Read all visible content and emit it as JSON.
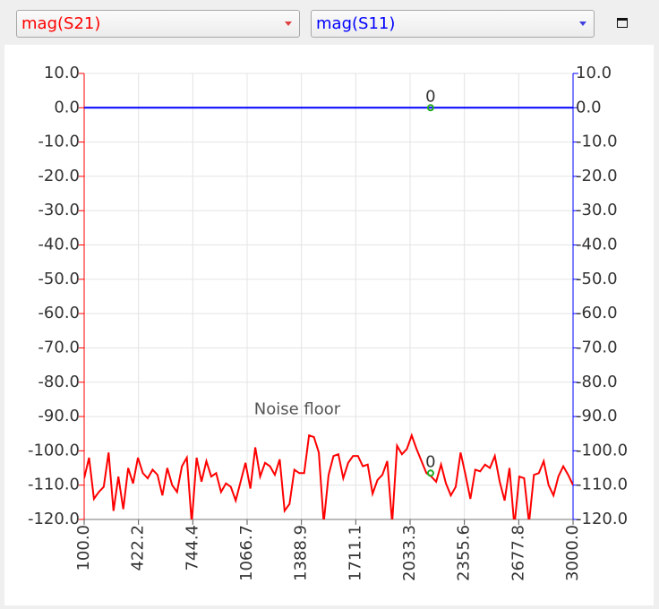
{
  "controls": {
    "trace_left": "mag(S21)",
    "trace_right": "mag(S11)"
  },
  "chart_data": {
    "type": "line",
    "x": [
      100,
      129,
      158,
      187,
      216,
      245,
      274,
      303,
      332,
      361,
      390,
      419,
      448,
      477,
      506,
      535,
      564,
      593,
      622,
      651,
      680,
      709,
      738,
      767,
      796,
      825,
      854,
      883,
      912,
      941,
      970,
      999,
      1028,
      1057,
      1086,
      1115,
      1144,
      1173,
      1202,
      1231,
      1260,
      1289,
      1318,
      1347,
      1376,
      1405,
      1434,
      1463,
      1492,
      1521,
      1550,
      1579,
      1608,
      1637,
      1666,
      1695,
      1724,
      1753,
      1782,
      1811,
      1840,
      1869,
      1898,
      1927,
      1956,
      1985,
      2014,
      2043,
      2072,
      2101,
      2130,
      2159,
      2188,
      2217,
      2246,
      2275,
      2304,
      2333,
      2362,
      2391,
      2420,
      2449,
      2478,
      2507,
      2536,
      2565,
      2594,
      2623,
      2652,
      2681,
      2710,
      2739,
      2768,
      2797,
      2826,
      2855,
      2884,
      2913,
      2942,
      2971,
      3000
    ],
    "series": [
      {
        "name": "mag(S21)",
        "color": "#ff0000",
        "axis": "y",
        "values": [
          -108,
          -102,
          -114,
          -112,
          -110.5,
          -100.5,
          -117.5,
          -107.5,
          -117,
          -105,
          -109.5,
          -102,
          -106.5,
          -108,
          -105.5,
          -107,
          -113,
          -105,
          -110,
          -112,
          -104.5,
          -102,
          -121,
          -102,
          -109,
          -103,
          -107.5,
          -106.5,
          -112,
          -109.5,
          -110.5,
          -114.5,
          -109,
          -103.5,
          -111,
          -99,
          -107.5,
          -103.5,
          -104.5,
          -107,
          -102.5,
          -117.5,
          -115.5,
          -105.5,
          -106.5,
          -106.5,
          -95.5,
          -96,
          -100.5,
          -121,
          -107,
          -101.5,
          -101,
          -108,
          -103.5,
          -101.5,
          -101.5,
          -104.5,
          -104,
          -112.5,
          -108.5,
          -107,
          -103,
          -121,
          -98.5,
          -101,
          -99.5,
          -95.5,
          -99.5,
          -103,
          -106.5,
          -107.5,
          -109,
          -104,
          -109.5,
          -113,
          -110.5,
          -100.5,
          -107,
          -114,
          -105.5,
          -106,
          -104,
          -105,
          -101.5,
          -109,
          -114.5,
          -105,
          -122,
          -107.5,
          -108,
          -121,
          -107,
          -106.5,
          -103,
          -110,
          -113,
          -107.5,
          -104.5,
          -107,
          -110
        ]
      },
      {
        "name": "mag(S11)",
        "color": "#0000ff",
        "axis": "y2",
        "values": [
          0,
          0,
          0,
          0,
          0,
          0,
          0,
          0,
          0,
          0,
          0,
          0,
          0,
          0,
          0,
          0,
          0,
          0,
          0,
          0,
          0,
          0,
          0,
          0,
          0,
          0,
          0,
          0,
          0,
          0,
          0,
          0,
          0,
          0,
          0,
          0,
          0,
          0,
          0,
          0,
          0,
          0,
          0,
          0,
          0,
          0,
          0,
          0,
          0,
          0,
          0,
          0,
          0,
          0,
          0,
          0,
          0,
          0,
          0,
          0,
          0,
          0,
          0,
          0,
          0,
          0,
          0,
          0,
          0,
          0,
          0,
          0,
          0,
          0,
          0,
          0,
          0,
          0,
          0,
          0,
          0,
          0,
          0,
          0,
          0,
          0,
          0,
          0,
          0,
          0,
          0,
          0,
          0,
          0,
          0,
          0,
          0,
          0,
          0,
          0,
          0
        ]
      }
    ],
    "xlim": [
      100,
      3000
    ],
    "xticks": [
      {
        "value": 100,
        "label": "100.0"
      },
      422.2,
      744.4,
      1066.7,
      1388.9,
      1711.1,
      2033.3,
      2355.6,
      2677.8,
      {
        "value": 3000,
        "label": "3000.0"
      }
    ],
    "ylim": [
      -120,
      10
    ],
    "yticks": [
      {
        "value": 10,
        "label": "10.0"
      },
      {
        "value": 0,
        "label": "0.0"
      },
      {
        "value": -10,
        "label": "-10.0"
      },
      {
        "value": -20,
        "label": "-20.0"
      },
      {
        "value": -30,
        "label": "-30.0"
      },
      {
        "value": -40,
        "label": "-40.0"
      },
      {
        "value": -50,
        "label": "-50.0"
      },
      {
        "value": -60,
        "label": "-60.0"
      },
      {
        "value": -70,
        "label": "-70.0"
      },
      {
        "value": -80,
        "label": "-80.0"
      },
      {
        "value": -90,
        "label": "-90.0"
      },
      {
        "value": -100,
        "label": "-100.0"
      },
      {
        "value": -110,
        "label": "-110.0"
      },
      {
        "value": -120,
        "label": "-120.0"
      }
    ],
    "y2lim": [
      -120,
      10
    ],
    "y2ticks": [
      {
        "value": 10,
        "label": "10.0"
      },
      {
        "value": 0,
        "label": "0.0"
      },
      {
        "value": -10,
        "label": "-10.0"
      },
      {
        "value": -20,
        "label": "-20.0"
      },
      {
        "value": -30,
        "label": "-30.0"
      },
      {
        "value": -40,
        "label": "-40.0"
      },
      {
        "value": -50,
        "label": "-50.0"
      },
      {
        "value": -60,
        "label": "-60.0"
      },
      {
        "value": -70,
        "label": "-70.0"
      },
      {
        "value": -80,
        "label": "-80.0"
      },
      {
        "value": -90,
        "label": "-90.0"
      },
      {
        "value": -100,
        "label": "-100.0"
      },
      {
        "value": -110,
        "label": "-110.0"
      },
      {
        "value": -120,
        "label": "-120.0"
      }
    ],
    "grid": true,
    "markers": [
      {
        "label": "0",
        "x": 2155,
        "y": 0,
        "axis": "y2",
        "color": "#22aa22"
      },
      {
        "label": "0",
        "x": 2155,
        "y": -106.5,
        "axis": "y",
        "color": "#22aa22"
      }
    ],
    "annotations": [
      {
        "text": "Noise floor",
        "x": 1400,
        "y": -88
      }
    ]
  }
}
